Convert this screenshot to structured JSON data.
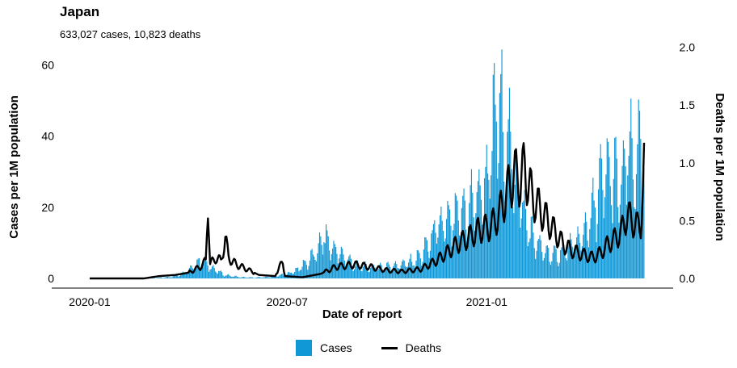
{
  "colors": {
    "cases": "#0f97d6",
    "deaths": "#000000"
  },
  "chart_data": {
    "type": "bar+line",
    "title": "Japan",
    "subtitle": "633,027 cases, 10,823 deaths",
    "xlabel": "Date of report",
    "ylabel_left": "Cases per 1M population",
    "ylabel_right": "Deaths per 1M population",
    "xlim": [
      "2020-01-01",
      "2021-05-26"
    ],
    "x_ticks": [
      "2020-01",
      "2020-07",
      "2021-01"
    ],
    "ylim_left": [
      0,
      65
    ],
    "y_ticks_left": [
      "0",
      "20",
      "40",
      "60"
    ],
    "ylim_right": [
      0,
      2.0
    ],
    "y_ticks_right": [
      "0.0",
      "0.5",
      "1.0",
      "1.5",
      "2.0"
    ],
    "legend_position": "bottom",
    "series": [
      {
        "name": "Cases",
        "type": "bar",
        "axis": "left",
        "points": [
          [
            "2020-01-01",
            0
          ],
          [
            "2020-02-15",
            0.1
          ],
          [
            "2020-03-01",
            0.2
          ],
          [
            "2020-03-15",
            0.5
          ],
          [
            "2020-03-25",
            1.5
          ],
          [
            "2020-04-01",
            2.5
          ],
          [
            "2020-04-05",
            4
          ],
          [
            "2020-04-10",
            5.5
          ],
          [
            "2020-04-15",
            6
          ],
          [
            "2020-04-18",
            5
          ],
          [
            "2020-04-22",
            4
          ],
          [
            "2020-04-28",
            2.5
          ],
          [
            "2020-05-05",
            1.2
          ],
          [
            "2020-05-12",
            0.8
          ],
          [
            "2020-05-20",
            0.4
          ],
          [
            "2020-06-01",
            0.3
          ],
          [
            "2020-06-15",
            0.5
          ],
          [
            "2020-07-01",
            1.5
          ],
          [
            "2020-07-10",
            3
          ],
          [
            "2020-07-20",
            6
          ],
          [
            "2020-07-28",
            9
          ],
          [
            "2020-08-01",
            12
          ],
          [
            "2020-08-03",
            16
          ],
          [
            "2020-08-07",
            13
          ],
          [
            "2020-08-14",
            10
          ],
          [
            "2020-08-21",
            8
          ],
          [
            "2020-08-28",
            6
          ],
          [
            "2020-09-05",
            4
          ],
          [
            "2020-09-15",
            4
          ],
          [
            "2020-09-25",
            4
          ],
          [
            "2020-10-05",
            4.5
          ],
          [
            "2020-10-15",
            5
          ],
          [
            "2020-10-25",
            6
          ],
          [
            "2020-11-01",
            8
          ],
          [
            "2020-11-08",
            12
          ],
          [
            "2020-11-15",
            17
          ],
          [
            "2020-11-22",
            19
          ],
          [
            "2020-11-29",
            20
          ],
          [
            "2020-12-06",
            22
          ],
          [
            "2020-12-13",
            24
          ],
          [
            "2020-12-20",
            28
          ],
          [
            "2020-12-27",
            30
          ],
          [
            "2021-01-03",
            37
          ],
          [
            "2021-01-08",
            55
          ],
          [
            "2021-01-12",
            62
          ],
          [
            "2021-01-16",
            52
          ],
          [
            "2021-01-20",
            48
          ],
          [
            "2021-01-24",
            42
          ],
          [
            "2021-01-30",
            32
          ],
          [
            "2021-02-05",
            22
          ],
          [
            "2021-02-12",
            15
          ],
          [
            "2021-02-19",
            11
          ],
          [
            "2021-02-26",
            9
          ],
          [
            "2021-03-05",
            8
          ],
          [
            "2021-03-12",
            10
          ],
          [
            "2021-03-19",
            11
          ],
          [
            "2021-03-26",
            13
          ],
          [
            "2021-04-02",
            17
          ],
          [
            "2021-04-09",
            24
          ],
          [
            "2021-04-16",
            33
          ],
          [
            "2021-04-23",
            38
          ],
          [
            "2021-04-30",
            35
          ],
          [
            "2021-05-05",
            31
          ],
          [
            "2021-05-10",
            44
          ],
          [
            "2021-05-15",
            42
          ],
          [
            "2021-05-20",
            40
          ],
          [
            "2021-05-23",
            51
          ],
          [
            "2021-05-25",
            38
          ]
        ]
      },
      {
        "name": "Deaths",
        "type": "line",
        "axis": "right",
        "points": [
          [
            "2020-01-01",
            0
          ],
          [
            "2020-02-20",
            0
          ],
          [
            "2020-03-05",
            0.02
          ],
          [
            "2020-03-20",
            0.03
          ],
          [
            "2020-04-01",
            0.05
          ],
          [
            "2020-04-12",
            0.1
          ],
          [
            "2020-04-17",
            0.15
          ],
          [
            "2020-04-19",
            0.72
          ],
          [
            "2020-04-21",
            0.12
          ],
          [
            "2020-04-26",
            0.18
          ],
          [
            "2020-05-01",
            0.15
          ],
          [
            "2020-05-05",
            0.35
          ],
          [
            "2020-05-08",
            0.18
          ],
          [
            "2020-05-15",
            0.12
          ],
          [
            "2020-05-25",
            0.08
          ],
          [
            "2020-06-05",
            0.03
          ],
          [
            "2020-06-20",
            0.02
          ],
          [
            "2020-06-27",
            0.15
          ],
          [
            "2020-06-29",
            0.02
          ],
          [
            "2020-07-15",
            0.01
          ],
          [
            "2020-08-01",
            0.04
          ],
          [
            "2020-08-15",
            0.1
          ],
          [
            "2020-09-01",
            0.12
          ],
          [
            "2020-09-15",
            0.1
          ],
          [
            "2020-10-01",
            0.07
          ],
          [
            "2020-10-15",
            0.06
          ],
          [
            "2020-11-01",
            0.08
          ],
          [
            "2020-11-15",
            0.15
          ],
          [
            "2020-11-25",
            0.22
          ],
          [
            "2020-12-05",
            0.3
          ],
          [
            "2020-12-15",
            0.35
          ],
          [
            "2020-12-25",
            0.42
          ],
          [
            "2021-01-05",
            0.45
          ],
          [
            "2021-01-12",
            0.55
          ],
          [
            "2021-01-20",
            0.75
          ],
          [
            "2021-01-26",
            0.9
          ],
          [
            "2021-02-01",
            0.85
          ],
          [
            "2021-02-05",
            0.95
          ],
          [
            "2021-02-12",
            0.7
          ],
          [
            "2021-02-19",
            0.6
          ],
          [
            "2021-02-26",
            0.5
          ],
          [
            "2021-03-05",
            0.4
          ],
          [
            "2021-03-12",
            0.3
          ],
          [
            "2021-03-19",
            0.25
          ],
          [
            "2021-03-26",
            0.22
          ],
          [
            "2021-04-02",
            0.2
          ],
          [
            "2021-04-09",
            0.18
          ],
          [
            "2021-04-16",
            0.22
          ],
          [
            "2021-04-23",
            0.3
          ],
          [
            "2021-04-30",
            0.35
          ],
          [
            "2021-05-05",
            0.4
          ],
          [
            "2021-05-10",
            0.55
          ],
          [
            "2021-05-15",
            0.5
          ],
          [
            "2021-05-20",
            0.45
          ],
          [
            "2021-05-23",
            0.48
          ],
          [
            "2021-05-26",
            0.95
          ]
        ]
      }
    ]
  }
}
